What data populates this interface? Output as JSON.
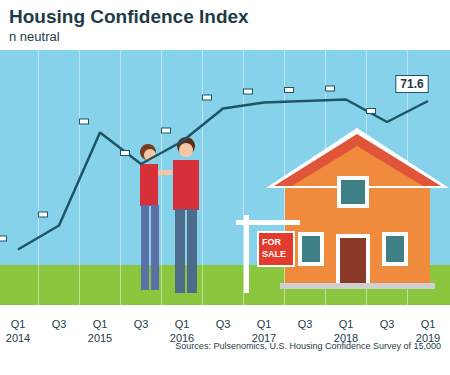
{
  "chart_data": {
    "type": "line",
    "title": "Housing Confidence Index",
    "subtitle": "n neutral",
    "source": "Sources: Pulsenomics, U.S. Housing Confidence Survey of 15,000",
    "annotations": [
      "FOR SALE"
    ],
    "categories": [
      "Q1\n2014",
      null,
      "Q3",
      null,
      "Q1\n2015",
      null,
      "Q3",
      null,
      "Q1\n2016",
      null,
      "Q3",
      null,
      "Q1\n2017",
      null,
      "Q3",
      null,
      "Q1\n2018",
      null,
      "Q3",
      null,
      "Q1\n2019"
    ],
    "values": [
      61.7,
      null,
      63.3,
      null,
      69.5,
      null,
      67.4,
      null,
      68.9,
      null,
      71.1,
      null,
      71.5,
      null,
      71.6,
      null,
      71.7,
      null,
      70.2,
      null,
      71.6
    ],
    "value_labels": [
      null,
      null,
      null,
      null,
      null,
      null,
      null,
      null,
      null,
      null,
      null,
      null,
      null,
      null,
      null,
      null,
      null,
      null,
      null,
      null,
      "71.6"
    ],
    "data_labels": true,
    "color": "#1d5566",
    "ylim": [
      58,
      75
    ],
    "grid": true,
    "tick_labels": "x"
  }
}
